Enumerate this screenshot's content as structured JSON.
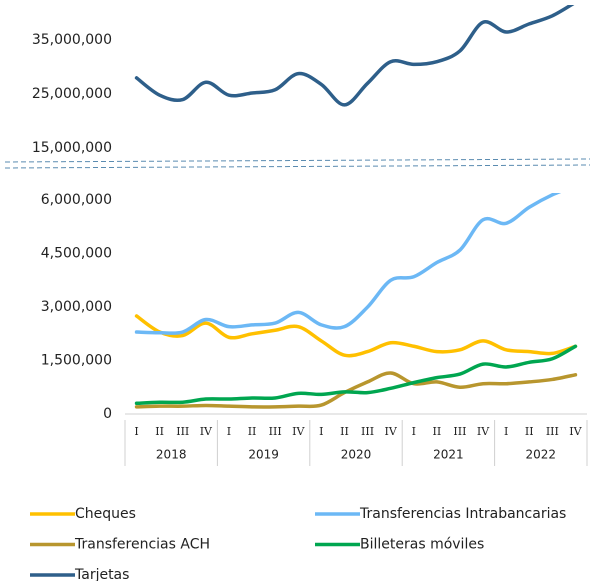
{
  "chart_data": [
    {
      "type": "line",
      "series": [
        {
          "name": "Tarjetas",
          "color": "#2e5f8a",
          "values": [
            28000000,
            24800000,
            24000000,
            27200000,
            24800000,
            25200000,
            25800000,
            28800000,
            26800000,
            23000000,
            27000000,
            31000000,
            30500000,
            31000000,
            33000000,
            38300000,
            36500000,
            38000000,
            39500000,
            42000000
          ]
        }
      ],
      "ylim": [
        12800000,
        41500000
      ],
      "yticks": [
        {
          "value": 15000000,
          "label": "15,000,000"
        },
        {
          "value": 25000000,
          "label": "25,000,000"
        },
        {
          "value": 35000000,
          "label": "35,000,000"
        }
      ]
    },
    {
      "type": "line",
      "categories": [
        "I",
        "II",
        "III",
        "IV",
        "I",
        "II",
        "III",
        "IV",
        "I",
        "II",
        "III",
        "IV",
        "I",
        "II",
        "III",
        "IV",
        "I",
        "II",
        "III",
        "IV"
      ],
      "category_groups": [
        "2018",
        "2019",
        "2020",
        "2021",
        "2022"
      ],
      "series": [
        {
          "name": "Cheques",
          "color": "#ffc000",
          "values": [
            2750000,
            2300000,
            2200000,
            2550000,
            2150000,
            2250000,
            2350000,
            2450000,
            2050000,
            1650000,
            1750000,
            2000000,
            1900000,
            1750000,
            1800000,
            2050000,
            1800000,
            1750000,
            1700000,
            1900000
          ]
        },
        {
          "name": "Transferencias Intrabancarias",
          "color": "#6cb8f5",
          "values": [
            2300000,
            2280000,
            2300000,
            2650000,
            2450000,
            2500000,
            2550000,
            2850000,
            2500000,
            2450000,
            3000000,
            3750000,
            3850000,
            4250000,
            4600000,
            5450000,
            5350000,
            5800000,
            6150000,
            6400000
          ]
        },
        {
          "name": "Transferencias ACH",
          "color": "#b8962e",
          "values": [
            200000,
            220000,
            220000,
            240000,
            220000,
            200000,
            200000,
            220000,
            250000,
            600000,
            900000,
            1150000,
            850000,
            900000,
            750000,
            850000,
            850000,
            900000,
            970000,
            1100000
          ]
        },
        {
          "name": "Billeteras móviles",
          "color": "#00a650",
          "values": [
            300000,
            330000,
            330000,
            420000,
            420000,
            450000,
            450000,
            580000,
            550000,
            620000,
            600000,
            720000,
            880000,
            1020000,
            1120000,
            1400000,
            1320000,
            1450000,
            1550000,
            1900000
          ]
        }
      ],
      "ylim": [
        0,
        6200000
      ],
      "yticks": [
        0,
        {
          "value": 1500000,
          "label": "1,500,000"
        },
        {
          "value": 3000000,
          "label": "3,000,000"
        },
        {
          "value": 4500000,
          "label": "4,500,000"
        },
        {
          "value": 6000000,
          "label": "6,000,000"
        }
      ]
    }
  ]
}
